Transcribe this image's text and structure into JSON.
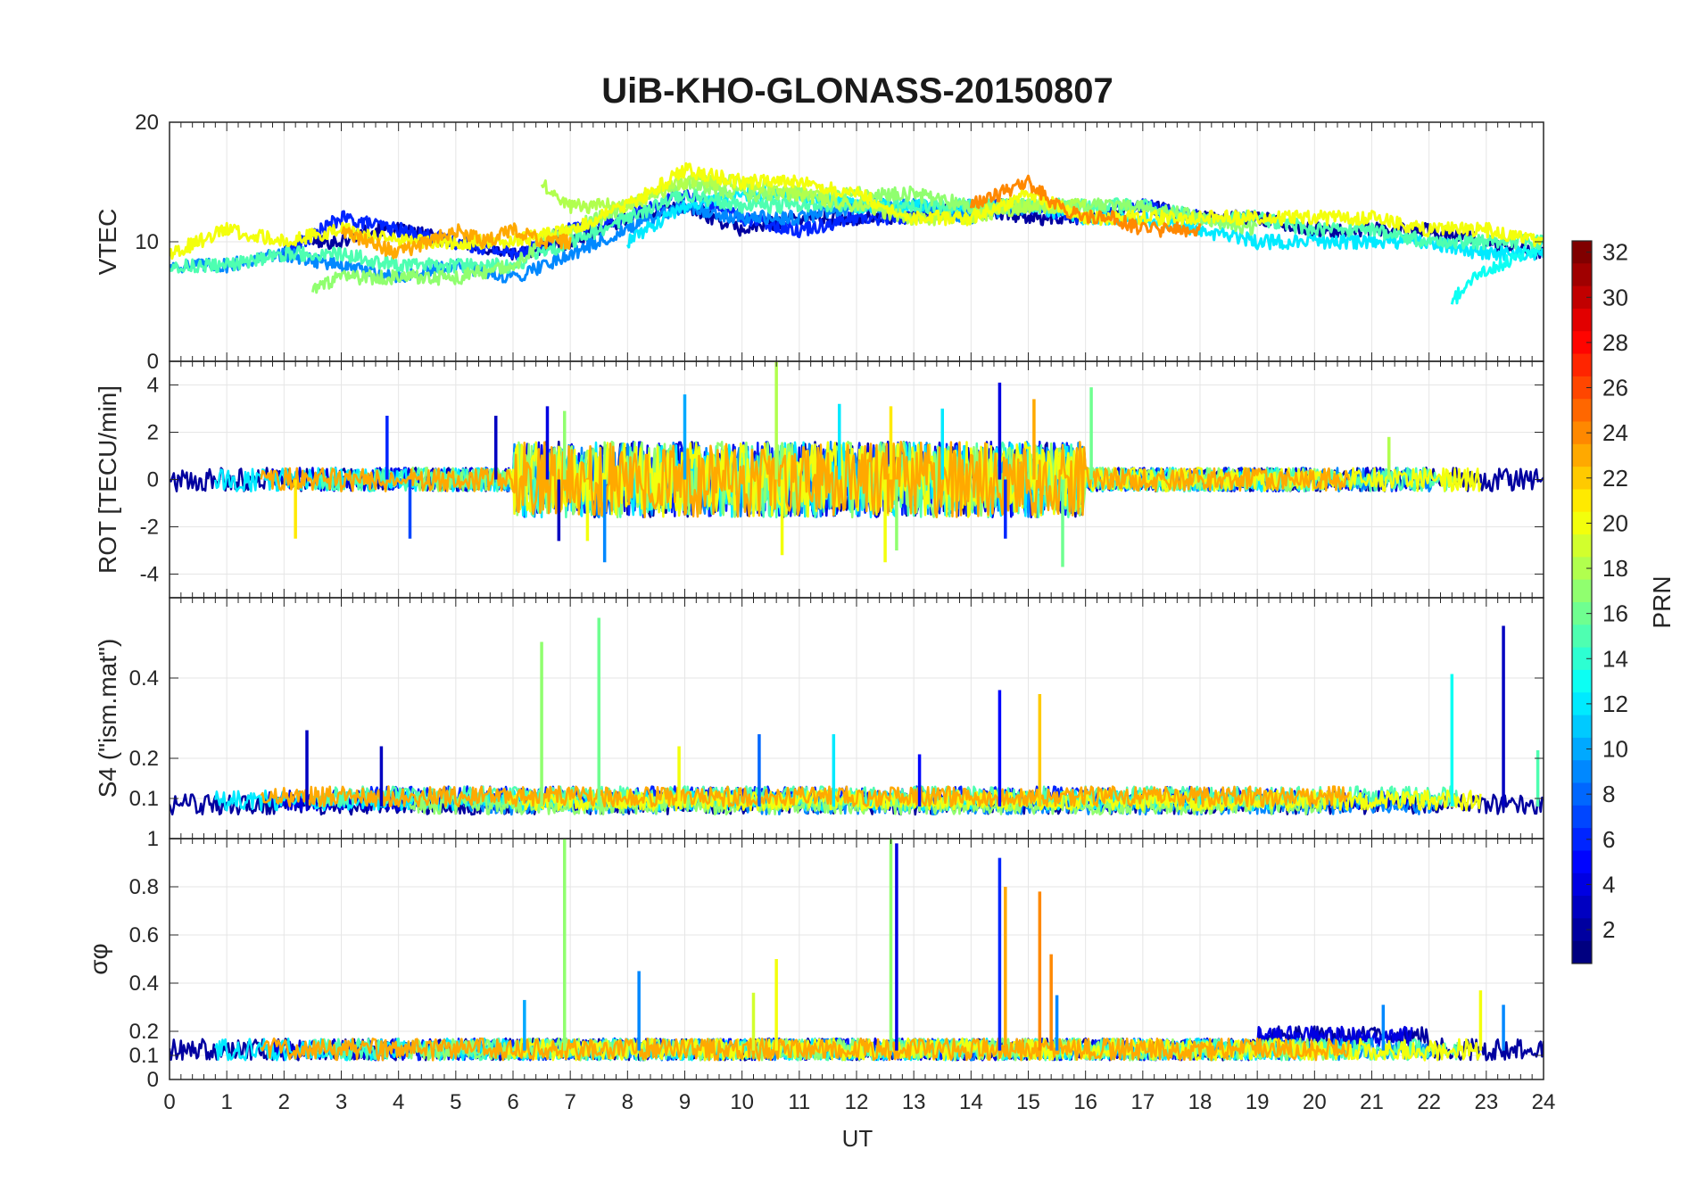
{
  "figure": {
    "title": "UiB-KHO-GLONASS-20150807",
    "xlabel": "UT",
    "x_ticks": [
      "0",
      "1",
      "2",
      "3",
      "4",
      "5",
      "6",
      "7",
      "8",
      "9",
      "10",
      "11",
      "12",
      "13",
      "14",
      "15",
      "16",
      "17",
      "18",
      "19",
      "20",
      "21",
      "22",
      "23",
      "24"
    ],
    "colorbar": {
      "label": "PRN",
      "ticks": [
        "2",
        "4",
        "6",
        "8",
        "10",
        "12",
        "14",
        "16",
        "18",
        "20",
        "22",
        "24",
        "26",
        "28",
        "30",
        "32"
      ],
      "range": [
        1,
        32
      ],
      "colormap": "jet"
    }
  },
  "chart_data": [
    {
      "type": "line",
      "id": "vtec",
      "ylabel": "VTEC",
      "xlim": [
        0,
        24
      ],
      "ylim": [
        0,
        20
      ],
      "yticks": [
        "0",
        "10",
        "20"
      ],
      "grid": true,
      "series": [
        {
          "prn": 2,
          "x": [
            2.5,
            3,
            3.5,
            4,
            5,
            6,
            7,
            8,
            9,
            10,
            11,
            12,
            13,
            14,
            15,
            16,
            17,
            18,
            19,
            20,
            21,
            22,
            23,
            24
          ],
          "y": [
            10,
            10,
            11,
            11,
            10,
            9,
            10,
            12,
            13,
            11,
            12,
            12,
            12,
            13,
            12,
            12,
            13,
            12,
            12,
            11,
            11,
            11,
            10,
            9
          ]
        },
        {
          "prn": 6,
          "x": [
            2,
            3,
            4,
            5,
            6,
            7,
            8,
            9,
            10,
            11,
            12,
            13,
            14,
            15,
            16,
            17,
            18
          ],
          "y": [
            9,
            12,
            11,
            10,
            9,
            11,
            12,
            14,
            12,
            11,
            12,
            12,
            13,
            13,
            12,
            13,
            12
          ]
        },
        {
          "prn": 9,
          "x": [
            0,
            1,
            2,
            3,
            4,
            5,
            6,
            7,
            8,
            9,
            10,
            11,
            12,
            13,
            14,
            15
          ],
          "y": [
            8,
            8,
            9,
            8,
            7,
            8,
            7,
            9,
            11,
            13,
            12,
            12,
            13,
            13,
            12,
            13
          ]
        },
        {
          "prn": 12,
          "x": [
            8,
            9,
            10,
            11,
            12,
            13,
            14,
            15,
            16,
            17,
            18,
            19,
            20,
            21,
            22,
            23,
            24
          ],
          "y": [
            10,
            13,
            14,
            14,
            13,
            13,
            13,
            13,
            12,
            12,
            11,
            10,
            10,
            10,
            10,
            9,
            9
          ]
        },
        {
          "prn": 13,
          "x": [
            22.4,
            22.8,
            23.2,
            23.6,
            24
          ],
          "y": [
            5,
            7,
            8,
            9,
            9.5
          ]
        },
        {
          "prn": 15,
          "x": [
            0,
            1,
            2,
            3,
            4,
            5,
            6,
            7,
            8,
            9,
            10,
            11,
            12,
            13,
            14,
            15,
            16,
            17,
            18,
            19,
            20,
            21,
            22,
            23,
            24
          ],
          "y": [
            8,
            8,
            9,
            9,
            8,
            8,
            8,
            10,
            12,
            14,
            13,
            13,
            13,
            13,
            13,
            13,
            13,
            13,
            12,
            12,
            11,
            11,
            10,
            10,
            10
          ]
        },
        {
          "prn": 17,
          "x": [
            2.5,
            3,
            4,
            5,
            6,
            6.5,
            7,
            8,
            9,
            10,
            11,
            12,
            13,
            14,
            15,
            16,
            17,
            18,
            19
          ],
          "y": [
            6,
            7,
            7,
            7,
            8,
            10,
            11,
            13,
            15,
            14,
            14,
            14,
            14,
            13,
            13,
            13,
            13,
            12,
            11
          ]
        },
        {
          "prn": 18,
          "x": [
            6.5,
            7,
            8,
            9,
            10,
            11,
            12,
            13,
            14,
            15,
            16
          ],
          "y": [
            15,
            13,
            13,
            15,
            15,
            14,
            13,
            12,
            12,
            13,
            13
          ]
        },
        {
          "prn": 20,
          "x": [
            0,
            1,
            2,
            3,
            4,
            5,
            6,
            7,
            8,
            9,
            10,
            11,
            12,
            13,
            14,
            15,
            16,
            17,
            18,
            19,
            20,
            21,
            22,
            23,
            24
          ],
          "y": [
            9,
            11,
            10,
            11,
            10,
            10,
            10,
            11,
            13,
            16,
            15,
            15,
            14,
            12,
            12,
            14,
            12,
            12,
            12,
            12,
            12,
            12,
            11,
            11,
            10
          ]
        },
        {
          "prn": 23,
          "x": [
            3,
            3.5,
            4,
            4.5,
            5,
            5.5,
            6,
            6.5,
            7
          ],
          "y": [
            11,
            10,
            9,
            10,
            11,
            10,
            11,
            10,
            10
          ]
        },
        {
          "prn": 24,
          "x": [
            14,
            14.5,
            15,
            15.5,
            16,
            16.5,
            17,
            18
          ],
          "y": [
            13,
            14,
            15,
            13,
            12,
            12,
            11,
            11
          ]
        }
      ]
    },
    {
      "type": "line",
      "id": "rot",
      "ylabel": "ROT [TECU/min]",
      "xlim": [
        0,
        24
      ],
      "ylim": [
        -5,
        5
      ],
      "yticks": [
        "-4",
        "-2",
        "0",
        "2",
        "4"
      ],
      "grid": true,
      "spikes": [
        {
          "x": 3.8,
          "y": 2.7,
          "prn": 6
        },
        {
          "x": 5.7,
          "y": 2.7,
          "prn": 3
        },
        {
          "x": 6.6,
          "y": 3.1,
          "prn": 4
        },
        {
          "x": 6.8,
          "y": -2.6,
          "prn": 3
        },
        {
          "x": 6.9,
          "y": 2.9,
          "prn": 17
        },
        {
          "x": 7.3,
          "y": -2.6,
          "prn": 20
        },
        {
          "x": 7.6,
          "y": -3.5,
          "prn": 9
        },
        {
          "x": 9.0,
          "y": 3.6,
          "prn": 10
        },
        {
          "x": 10.6,
          "y": 5.0,
          "prn": 18
        },
        {
          "x": 10.7,
          "y": -3.2,
          "prn": 20
        },
        {
          "x": 11.7,
          "y": 3.2,
          "prn": 12
        },
        {
          "x": 12.5,
          "y": -3.5,
          "prn": 20
        },
        {
          "x": 12.6,
          "y": 3.1,
          "prn": 21
        },
        {
          "x": 12.7,
          "y": -3.0,
          "prn": 17
        },
        {
          "x": 13.5,
          "y": 3.0,
          "prn": 12
        },
        {
          "x": 14.5,
          "y": 4.1,
          "prn": 4
        },
        {
          "x": 14.6,
          "y": -2.5,
          "prn": 6
        },
        {
          "x": 15.1,
          "y": 3.4,
          "prn": 23
        },
        {
          "x": 15.6,
          "y": -3.7,
          "prn": 16
        },
        {
          "x": 16.1,
          "y": 3.9,
          "prn": 16
        },
        {
          "x": 2.2,
          "y": -2.5,
          "prn": 21
        },
        {
          "x": 4.2,
          "y": -2.5,
          "prn": 7
        },
        {
          "x": 21.3,
          "y": 1.8,
          "prn": 18
        }
      ]
    },
    {
      "type": "line",
      "id": "s4",
      "ylabel": "S4 (\"ism.mat\")",
      "xlim": [
        0,
        24
      ],
      "ylim": [
        0,
        0.6
      ],
      "yticks": [
        "0.1",
        "0.2",
        "0.4"
      ],
      "grid": true,
      "spikes": [
        {
          "x": 2.4,
          "y": 0.27,
          "prn": 3
        },
        {
          "x": 3.7,
          "y": 0.23,
          "prn": 3
        },
        {
          "x": 6.5,
          "y": 0.49,
          "prn": 17
        },
        {
          "x": 7.5,
          "y": 0.55,
          "prn": 16
        },
        {
          "x": 8.9,
          "y": 0.23,
          "prn": 20
        },
        {
          "x": 10.3,
          "y": 0.26,
          "prn": 8
        },
        {
          "x": 11.6,
          "y": 0.26,
          "prn": 12
        },
        {
          "x": 13.1,
          "y": 0.21,
          "prn": 5
        },
        {
          "x": 14.5,
          "y": 0.37,
          "prn": 5
        },
        {
          "x": 15.2,
          "y": 0.36,
          "prn": 22
        },
        {
          "x": 22.4,
          "y": 0.41,
          "prn": 13
        },
        {
          "x": 23.3,
          "y": 0.53,
          "prn": 3
        },
        {
          "x": 23.9,
          "y": 0.22,
          "prn": 15
        }
      ]
    },
    {
      "type": "line",
      "id": "sigma_phi",
      "ylabel": "σφ",
      "xlim": [
        0,
        24
      ],
      "ylim": [
        0,
        1
      ],
      "yticks": [
        "0",
        "0.1",
        "0.2",
        "0.4",
        "0.6",
        "0.8",
        "1"
      ],
      "grid": true,
      "spikes": [
        {
          "x": 6.2,
          "y": 0.33,
          "prn": 10
        },
        {
          "x": 6.9,
          "y": 1.0,
          "prn": 17
        },
        {
          "x": 8.2,
          "y": 0.45,
          "prn": 9
        },
        {
          "x": 10.2,
          "y": 0.36,
          "prn": 19
        },
        {
          "x": 10.6,
          "y": 0.5,
          "prn": 20
        },
        {
          "x": 12.6,
          "y": 1.0,
          "prn": 17
        },
        {
          "x": 12.7,
          "y": 0.98,
          "prn": 4
        },
        {
          "x": 14.5,
          "y": 0.92,
          "prn": 6
        },
        {
          "x": 14.6,
          "y": 0.8,
          "prn": 23
        },
        {
          "x": 15.2,
          "y": 0.78,
          "prn": 24
        },
        {
          "x": 15.4,
          "y": 0.52,
          "prn": 24
        },
        {
          "x": 15.5,
          "y": 0.35,
          "prn": 9
        },
        {
          "x": 21.2,
          "y": 0.31,
          "prn": 9
        },
        {
          "x": 22.9,
          "y": 0.37,
          "prn": 20
        },
        {
          "x": 23.3,
          "y": 0.31,
          "prn": 9
        }
      ]
    }
  ]
}
